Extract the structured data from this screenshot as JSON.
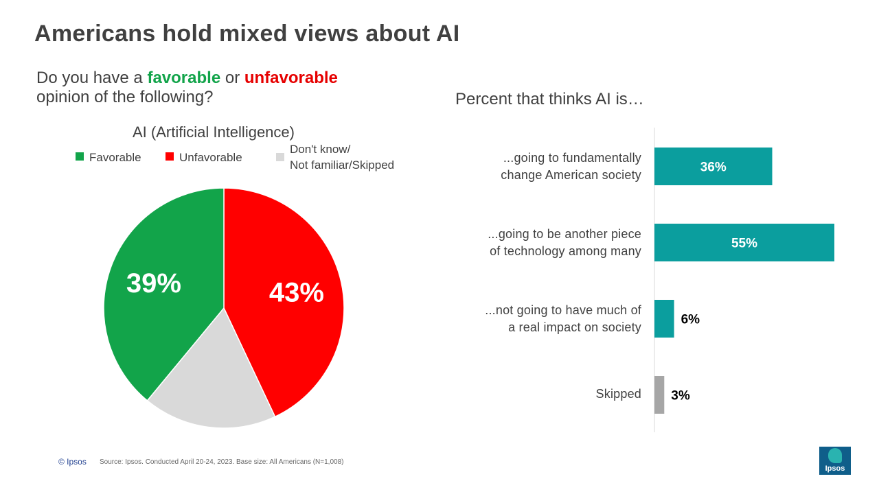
{
  "title": "Americans hold mixed views about AI",
  "question": {
    "prefix": "Do you have a",
    "favorable_word": "favorable",
    "middle": "or",
    "unfavorable_word": "unfavorable",
    "line2": "opinion of the following?"
  },
  "colors": {
    "favorable": "#12a44a",
    "unfavorable": "#ff0000",
    "dont_know": "#d9d9d9",
    "bar": "#0b9e9e",
    "bar_skipped": "#a6a6a6"
  },
  "chart_data": [
    {
      "type": "pie",
      "title": "AI (Artificial Intelligence)",
      "legend": [
        {
          "label": "Favorable",
          "color": "#12a44a"
        },
        {
          "label": "Unfavorable",
          "color": "#ff0000"
        },
        {
          "label_line1": "Don't know/",
          "label_line2": "Not familiar/Skipped",
          "color": "#d9d9d9"
        }
      ],
      "slices": [
        {
          "name": "Unfavorable",
          "value": 43,
          "label": "43%",
          "color": "#ff0000"
        },
        {
          "name": "Don't know/Not familiar/Skipped",
          "value": 18,
          "label": "",
          "color": "#d9d9d9"
        },
        {
          "name": "Favorable",
          "value": 39,
          "label": "39%",
          "color": "#12a44a"
        }
      ],
      "legend_placement": "top"
    },
    {
      "type": "bar",
      "orientation": "horizontal",
      "title": "Percent that thinks AI is…",
      "categories": [
        {
          "line1": "...going to fundamentally",
          "line2": "change American society"
        },
        {
          "line1": "...going to be another piece",
          "line2": "of technology among many"
        },
        {
          "line1": "...not going to have much of",
          "line2": "a real impact on society"
        },
        {
          "line1": "Skipped",
          "line2": ""
        }
      ],
      "values": [
        36,
        55,
        6,
        3
      ],
      "labels": [
        "36%",
        "55%",
        "6%",
        "3%"
      ],
      "bar_colors": [
        "#0b9e9e",
        "#0b9e9e",
        "#0b9e9e",
        "#a6a6a6"
      ],
      "xlim": [
        0,
        55
      ]
    }
  ],
  "footer": {
    "copyright": "© Ipsos",
    "source": "Source: Ipsos. Conducted April 20-24, 2023. Base size: All Americans (N=1,008)"
  },
  "logo": {
    "text": "Ipsos"
  }
}
